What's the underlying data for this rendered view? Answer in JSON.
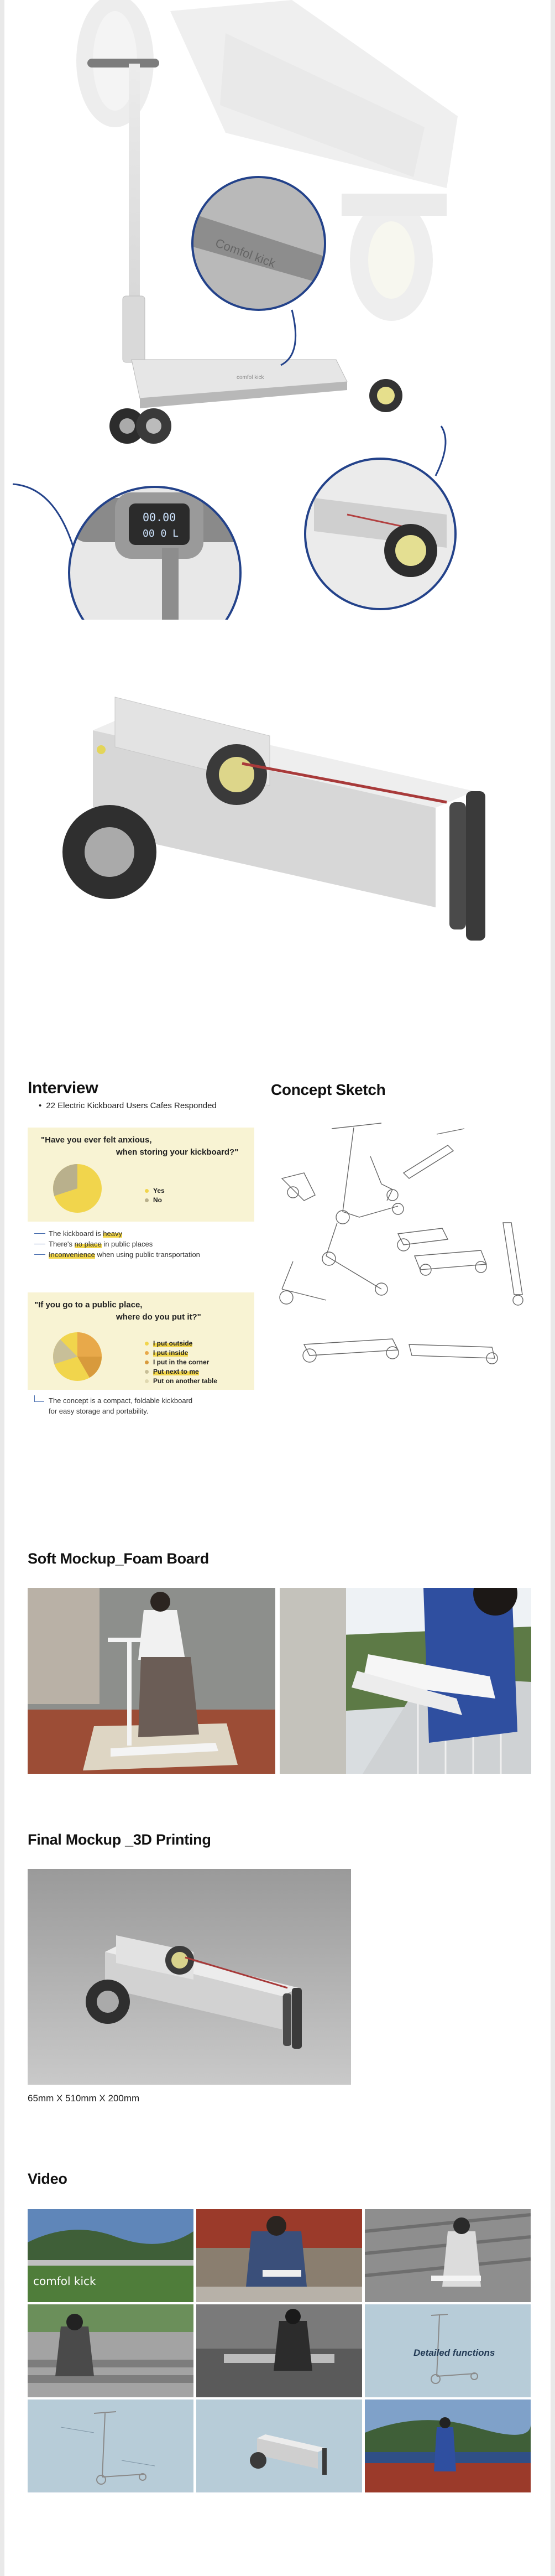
{
  "interview": {
    "title": "Interview",
    "bullet": "22 Electric Kickboard Users Cafes Responded",
    "q1": {
      "line1": "\"Have you ever felt anxious,",
      "line2": "when storing your kickboard?\"",
      "legend": [
        "Yes",
        "No"
      ],
      "colors": [
        "#f1d54c",
        "#b9b08c"
      ]
    },
    "notes": {
      "n1_pre": "The kickboard is ",
      "n1_hl": "heavy",
      "n2_pre": "There's ",
      "n2_hl": "no place",
      "n2_post": " in public places",
      "n3_hl": "Inconvenience",
      "n3_post": " when using public transportation"
    },
    "q2": {
      "line1": "\"If you go to a public place,",
      "line2": "where do you put it?\"",
      "legend": [
        "I put outside",
        "I put inside",
        "I put in the corner",
        "Put next to me",
        "Put on another table"
      ],
      "colors": [
        "#f1d54c",
        "#e8a94a",
        "#d89a3c",
        "#c8bf98",
        "#e0d8b0"
      ]
    },
    "conclusion_line1": "The concept is a compact, foldable kickboard",
    "conclusion_line2": "for easy storage and portability."
  },
  "concept": {
    "title": "Concept Sketch"
  },
  "soft_mockup": {
    "title": "Soft Mockup_Foam Board"
  },
  "final_mockup": {
    "title": "Final Mockup _3D Printing",
    "dimensions": "65mm X 510mm X 200mm"
  },
  "video": {
    "title": "Video",
    "tile_caption_1": "comfol kick",
    "tile_caption_6": "Detailed functions"
  },
  "hero": {
    "display_row1": "00.00",
    "display_row2": "00 0 L"
  }
}
